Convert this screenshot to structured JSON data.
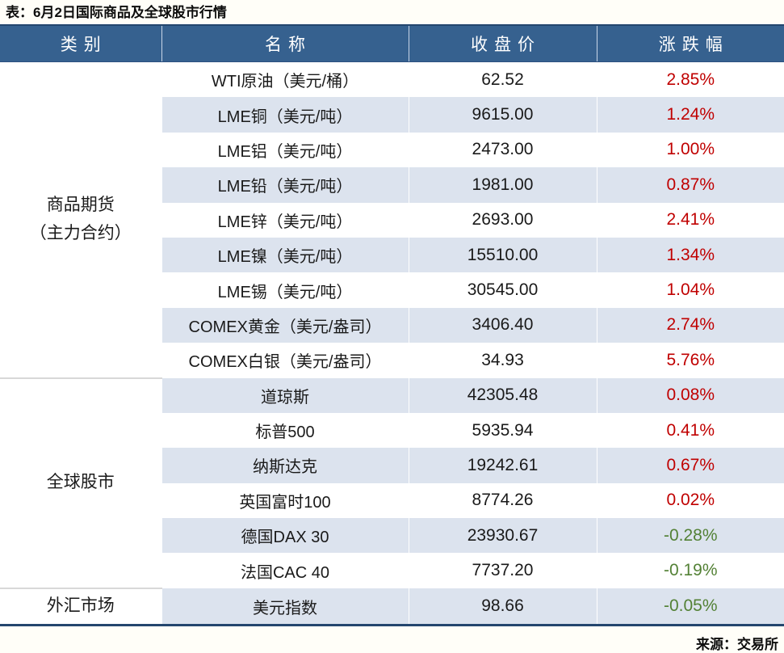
{
  "title": "表：6月2日国际商品及全球股市行情",
  "source": "来源：交易所",
  "colors": {
    "header_bg": "#36618F",
    "header_text": "#FFFFFF",
    "stripe": "#DCE3EE",
    "up_red": "#C00000",
    "down_green": "#538135",
    "navy_border": "#24466E",
    "group_divider": "#D8D8D8"
  },
  "chart_data": {
    "type": "table",
    "title": "表：6月2日国际商品及全球股市行情",
    "columns": [
      "类别",
      "名称",
      "收盘价",
      "涨跌幅"
    ],
    "groups": [
      {
        "category": "商品期货\n（主力合约）",
        "rows": [
          {
            "name": "WTI原油（美元/桶）",
            "close": "62.52",
            "change": "2.85%",
            "direction": "up"
          },
          {
            "name": "LME铜（美元/吨）",
            "close": "9615.00",
            "change": "1.24%",
            "direction": "up"
          },
          {
            "name": "LME铝（美元/吨）",
            "close": "2473.00",
            "change": "1.00%",
            "direction": "up"
          },
          {
            "name": "LME铅（美元/吨）",
            "close": "1981.00",
            "change": "0.87%",
            "direction": "up"
          },
          {
            "name": "LME锌（美元/吨）",
            "close": "2693.00",
            "change": "2.41%",
            "direction": "up"
          },
          {
            "name": "LME镍（美元/吨）",
            "close": "15510.00",
            "change": "1.34%",
            "direction": "up"
          },
          {
            "name": "LME锡（美元/吨）",
            "close": "30545.00",
            "change": "1.04%",
            "direction": "up"
          },
          {
            "name": "COMEX黄金（美元/盎司）",
            "close": "3406.40",
            "change": "2.74%",
            "direction": "up"
          },
          {
            "name": "COMEX白银（美元/盎司）",
            "close": "34.93",
            "change": "5.76%",
            "direction": "up"
          }
        ]
      },
      {
        "category": "全球股市",
        "rows": [
          {
            "name": "道琼斯",
            "close": "42305.48",
            "change": "0.08%",
            "direction": "up"
          },
          {
            "name": "标普500",
            "close": "5935.94",
            "change": "0.41%",
            "direction": "up"
          },
          {
            "name": "纳斯达克",
            "close": "19242.61",
            "change": "0.67%",
            "direction": "up"
          },
          {
            "name": "英国富时100",
            "close": "8774.26",
            "change": "0.02%",
            "direction": "up"
          },
          {
            "name": "德国DAX 30",
            "close": "23930.67",
            "change": "-0.28%",
            "direction": "down"
          },
          {
            "name": "法国CAC 40",
            "close": "7737.20",
            "change": "-0.19%",
            "direction": "down"
          }
        ]
      },
      {
        "category": "外汇市场",
        "rows": [
          {
            "name": "美元指数",
            "close": "98.66",
            "change": "-0.05%",
            "direction": "down"
          }
        ]
      }
    ]
  }
}
